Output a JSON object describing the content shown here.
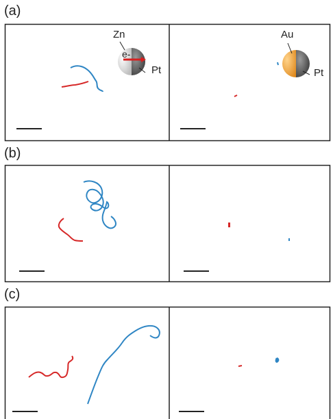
{
  "panels": [
    {
      "label": "(a)"
    },
    {
      "label": "(b)"
    },
    {
      "label": "(c)"
    }
  ],
  "particles": {
    "left": {
      "top_label": "Zn",
      "electron_label": "e-",
      "side_label": "Pt",
      "colors": {
        "left_half": "#e8e8e8",
        "right_half": "#5a5a5a",
        "arrow": "#d62020"
      }
    },
    "right": {
      "top_label": "Au",
      "side_label": "Pt",
      "colors": {
        "left_half": "#f2a23a",
        "right_half": "#5a5a5a"
      }
    }
  },
  "colors": {
    "trajectory_blue": "#2f86c4",
    "trajectory_red": "#d62828",
    "frame": "#222222"
  }
}
